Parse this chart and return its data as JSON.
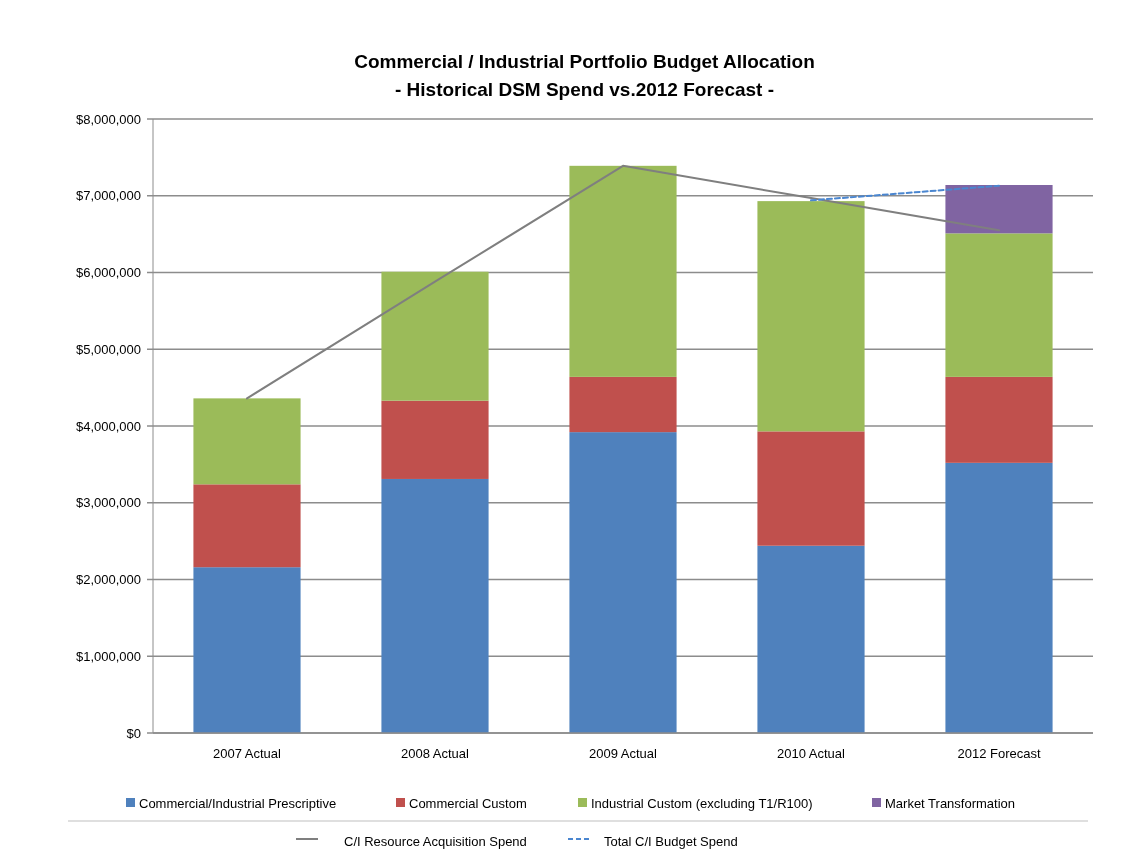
{
  "chart_data": {
    "type": "bar",
    "stacked": true,
    "title": "Commercial / Industrial Portfolio Budget Allocation",
    "subtitle": "- Historical DSM Spend vs.2012 Forecast -",
    "categories": [
      "2007 Actual",
      "2008 Actual",
      "2009 Actual",
      "2010 Actual",
      "2012 Forecast"
    ],
    "series": [
      {
        "name": "Commercial/Industrial Prescriptive",
        "color": "#4f81bd",
        "values": [
          2160000,
          3310000,
          3920000,
          2440000,
          3520000
        ]
      },
      {
        "name": "Commercial Custom",
        "color": "#c0504d",
        "values": [
          1080000,
          1020000,
          720000,
          1490000,
          1120000
        ]
      },
      {
        "name": "Industrial Custom (excluding T1/R100)",
        "color": "#9bbb59",
        "values": [
          1120000,
          1680000,
          2750000,
          3000000,
          1870000
        ]
      },
      {
        "name": "Market Transformation",
        "color": "#8064a2",
        "values": [
          null,
          null,
          null,
          null,
          630000
        ]
      },
      {
        "name": "C/I Resource Acquisition Spend",
        "type": "line",
        "color": "#7f7f7f",
        "line_style": "solid",
        "values": [
          4360000,
          5880000,
          7390000,
          6970000,
          6550000
        ]
      },
      {
        "name": "Total C/I Budget Spend",
        "type": "line",
        "color": "#4a86d0",
        "line_style": "dashed",
        "values": [
          null,
          null,
          null,
          6940000,
          7130000
        ]
      }
    ],
    "ylim": [
      0,
      8000000
    ],
    "yticks": [
      {
        "value": 0,
        "label": "$0"
      },
      {
        "value": 1000000,
        "label": "$1,000,000"
      },
      {
        "value": 2000000,
        "label": "$2,000,000"
      },
      {
        "value": 3000000,
        "label": "$3,000,000"
      },
      {
        "value": 4000000,
        "label": "$4,000,000"
      },
      {
        "value": 5000000,
        "label": "$5,000,000"
      },
      {
        "value": 6000000,
        "label": "$6,000,000"
      },
      {
        "value": 7000000,
        "label": "$7,000,000"
      },
      {
        "value": 8000000,
        "label": "$8,000,000"
      }
    ],
    "grid": "y",
    "legend": "bottom",
    "marker": "none"
  }
}
